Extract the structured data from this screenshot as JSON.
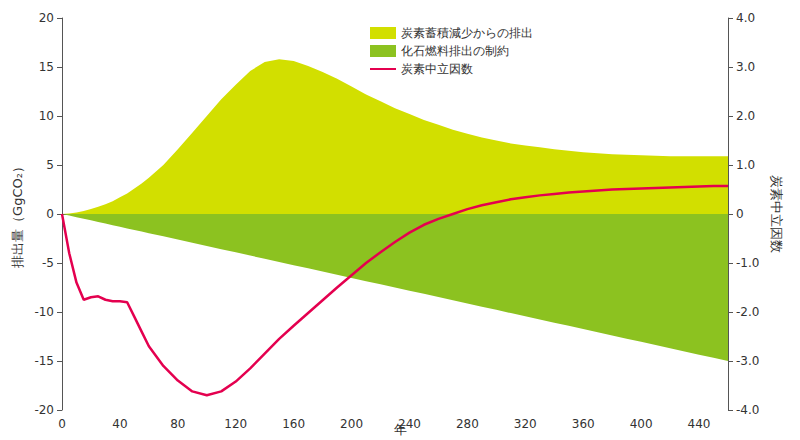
{
  "chart_data": {
    "type": "area",
    "x_label": "年",
    "y_label": "排出量（GgCO₂）",
    "y2_label": "炭素中立因数",
    "x": [
      0,
      5,
      10,
      15,
      20,
      25,
      30,
      35,
      40,
      45,
      50,
      55,
      60,
      70,
      80,
      90,
      100,
      110,
      120,
      130,
      140,
      150,
      160,
      170,
      180,
      190,
      200,
      210,
      220,
      230,
      240,
      250,
      260,
      270,
      280,
      290,
      300,
      310,
      320,
      330,
      340,
      350,
      360,
      370,
      380,
      390,
      400,
      410,
      420,
      430,
      440,
      450,
      460
    ],
    "series": [
      {
        "name": "炭素蓄積減少からの排出",
        "type": "area",
        "color": "#d2df00",
        "values": [
          0,
          0.05,
          0.15,
          0.3,
          0.5,
          0.75,
          1.0,
          1.3,
          1.7,
          2.1,
          2.6,
          3.1,
          3.7,
          5.0,
          6.6,
          8.3,
          10.0,
          11.7,
          13.2,
          14.6,
          15.5,
          15.8,
          15.6,
          15.1,
          14.5,
          13.8,
          13.0,
          12.2,
          11.5,
          10.8,
          10.2,
          9.6,
          9.1,
          8.6,
          8.2,
          7.8,
          7.5,
          7.2,
          7.0,
          6.8,
          6.6,
          6.45,
          6.3,
          6.2,
          6.1,
          6.05,
          6.0,
          5.95,
          5.9,
          5.9,
          5.9,
          5.9,
          5.9
        ]
      },
      {
        "name": "化石燃料排出の制約",
        "type": "area",
        "color": "#8cc220",
        "values": [
          0,
          -0.16,
          -0.33,
          -0.49,
          -0.65,
          -0.82,
          -0.98,
          -1.14,
          -1.3,
          -1.47,
          -1.63,
          -1.79,
          -1.96,
          -2.28,
          -2.61,
          -2.93,
          -3.26,
          -3.59,
          -3.91,
          -4.24,
          -4.57,
          -4.89,
          -5.22,
          -5.54,
          -5.87,
          -6.2,
          -6.52,
          -6.85,
          -7.17,
          -7.5,
          -7.83,
          -8.15,
          -8.48,
          -8.8,
          -9.13,
          -9.46,
          -9.78,
          -10.11,
          -10.43,
          -10.76,
          -11.09,
          -11.41,
          -11.74,
          -12.07,
          -12.39,
          -12.72,
          -13.04,
          -13.37,
          -13.7,
          -14.02,
          -14.35,
          -14.67,
          -15
        ]
      },
      {
        "name": "炭素中立因数",
        "type": "line",
        "axis": "y2",
        "color": "#e4004f",
        "values": [
          0,
          -0.8,
          -1.4,
          -1.75,
          -1.7,
          -1.68,
          -1.75,
          -1.78,
          -1.78,
          -1.8,
          -2.1,
          -2.4,
          -2.7,
          -3.1,
          -3.4,
          -3.62,
          -3.7,
          -3.62,
          -3.42,
          -3.15,
          -2.85,
          -2.55,
          -2.28,
          -2.02,
          -1.76,
          -1.5,
          -1.25,
          -1.0,
          -0.78,
          -0.57,
          -0.38,
          -0.22,
          -0.1,
          0.0,
          0.1,
          0.18,
          0.24,
          0.3,
          0.34,
          0.38,
          0.41,
          0.44,
          0.46,
          0.48,
          0.5,
          0.51,
          0.52,
          0.53,
          0.54,
          0.55,
          0.56,
          0.57,
          0.57
        ]
      }
    ],
    "xlim": [
      0,
      460
    ],
    "xticks": [
      0,
      40,
      80,
      120,
      160,
      200,
      240,
      280,
      320,
      360,
      400,
      440
    ],
    "ylim": [
      -20,
      20
    ],
    "yticks": [
      -20,
      -15,
      -10,
      -5,
      0,
      5,
      10,
      15,
      20
    ],
    "y2lim": [
      -4,
      4
    ],
    "y2ticks": [
      {
        "value": -4,
        "label": "-4.0"
      },
      {
        "value": -3,
        "label": "-3.0"
      },
      {
        "value": -2,
        "label": "-2.0"
      },
      {
        "value": -1,
        "label": "-1.0"
      },
      0,
      {
        "value": 1,
        "label": "1.0"
      },
      {
        "value": 2,
        "label": "2.0"
      },
      {
        "value": 3,
        "label": "3.0"
      },
      {
        "value": 4,
        "label": "4.0"
      }
    ],
    "grid": false,
    "legend": "top"
  }
}
